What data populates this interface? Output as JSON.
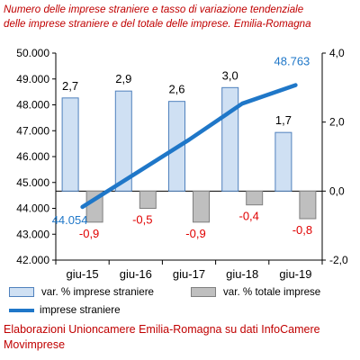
{
  "title": {
    "line1": "Numero delle imprese straniere e tasso di variazione tendenziale",
    "line2": "delle imprese straniere e del totale delle imprese. Emilia-Romagna"
  },
  "source": {
    "line1": "Elaborazioni Unioncamere Emilia-Romagna su dati InfoCamere",
    "line2": "Movimprese"
  },
  "colors": {
    "bar_straniere_fill": "#cfe0f3",
    "bar_straniere_stroke": "#4f81bd",
    "bar_totale_fill": "#bfbfbf",
    "bar_totale_stroke": "#7f7f7f",
    "line": "#1f77c8",
    "negative_label": "#e00000",
    "endpoint_label": "#1f77c8",
    "title_text": "#c00000"
  },
  "chart_data": {
    "type": "bar",
    "categories": [
      "giu-15",
      "giu-16",
      "giu-17",
      "giu-18",
      "giu-19"
    ],
    "series": [
      {
        "name": "var. % imprese straniere",
        "type": "bar",
        "axis": "right",
        "values": [
          2.7,
          2.9,
          2.6,
          3.0,
          1.7
        ],
        "labels": [
          "2,7",
          "2,9",
          "2,6",
          "3,0",
          "1,7"
        ]
      },
      {
        "name": "var. % totale imprese",
        "type": "bar",
        "axis": "right",
        "values": [
          -0.9,
          -0.5,
          -0.9,
          -0.4,
          -0.8
        ],
        "labels": [
          "-0,9",
          "-0,5",
          "-0,9",
          "-0,4",
          "-0,8"
        ]
      },
      {
        "name": "imprese straniere",
        "type": "line",
        "axis": "left",
        "values": [
          44054,
          45350,
          46650,
          48050,
          48763
        ],
        "labels": [
          "44.054",
          "",
          "",
          "",
          "48.763"
        ]
      }
    ],
    "y_left": {
      "ylim": [
        42000,
        50000
      ],
      "ticks": [
        "42.000",
        "43.000",
        "44.000",
        "45.000",
        "46.000",
        "47.000",
        "48.000",
        "49.000",
        "50.000"
      ]
    },
    "y_right": {
      "ylim": [
        -2.0,
        4.0
      ],
      "ticks": [
        "-2,0",
        "0,0",
        "2,0",
        "4,0"
      ]
    },
    "grid": false,
    "legend_position": "bottom"
  }
}
